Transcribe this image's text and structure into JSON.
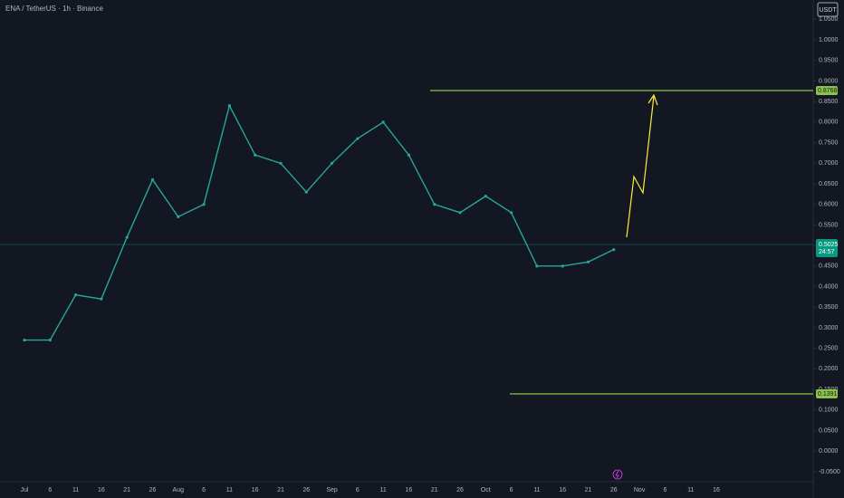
{
  "chart_data": {
    "type": "line",
    "title": "ENA / TetherUS · 1h · Binance",
    "currency_button": "USDT",
    "color": "#26a69a",
    "categories": [
      "Jul",
      "6",
      "11",
      "16",
      "21",
      "26",
      "Aug",
      "6",
      "11",
      "16",
      "21",
      "26",
      "Sep",
      "6",
      "11",
      "16",
      "21",
      "26",
      "Oct",
      "6",
      "11",
      "16",
      "21",
      "26",
      "Nov",
      "6",
      "11",
      "16"
    ],
    "values": [
      0.27,
      0.27,
      0.38,
      0.37,
      0.52,
      0.66,
      0.57,
      0.6,
      0.84,
      0.72,
      0.7,
      0.63,
      0.7,
      0.76,
      0.8,
      0.72,
      0.6,
      0.58,
      0.62,
      0.58,
      0.45,
      0.45,
      0.46,
      0.49,
      null,
      null,
      null,
      null
    ],
    "ylim": [
      -0.07,
      1.097
    ],
    "yticks": [
      {
        "value": 1.05,
        "label": "1.0500"
      },
      {
        "value": 1,
        "label": "1.0000"
      },
      {
        "value": 0.95,
        "label": "0.9500"
      },
      {
        "value": 0.9,
        "label": "0.9000"
      },
      {
        "value": 0.85,
        "label": "0.8500"
      },
      {
        "value": 0.8,
        "label": "0.8000"
      },
      {
        "value": 0.75,
        "label": "0.7500"
      },
      {
        "value": 0.7,
        "label": "0.7000"
      },
      {
        "value": 0.65,
        "label": "0.6500"
      },
      {
        "value": 0.6,
        "label": "0.6000"
      },
      {
        "value": 0.55,
        "label": "0.5500"
      },
      {
        "value": 0.5,
        "label": "0.5000"
      },
      {
        "value": 0.45,
        "label": "0.4500"
      },
      {
        "value": 0.4,
        "label": "0.4000"
      },
      {
        "value": 0.35,
        "label": "0.3500"
      },
      {
        "value": 0.3,
        "label": "0.3000"
      },
      {
        "value": 0.25,
        "label": "0.2500"
      },
      {
        "value": 0.2,
        "label": "0.2000"
      },
      {
        "value": 0.15,
        "label": "0.1500"
      },
      {
        "value": 0.1,
        "label": "0.1000"
      },
      {
        "value": 0.05,
        "label": "0.0500"
      },
      {
        "value": 0,
        "label": "0.0000"
      },
      {
        "value": -0.05,
        "label": "-0.0500"
      }
    ],
    "price_lines": [
      {
        "value": 0.8768,
        "label": "0.8768",
        "color": "#8bc34a"
      },
      {
        "value": 0.1391,
        "label": "0.1391",
        "color": "#8bc34a"
      }
    ],
    "current_price": {
      "value": 0.5025,
      "label": "0.5025",
      "countdown": "24:57",
      "color": "#089981"
    }
  }
}
